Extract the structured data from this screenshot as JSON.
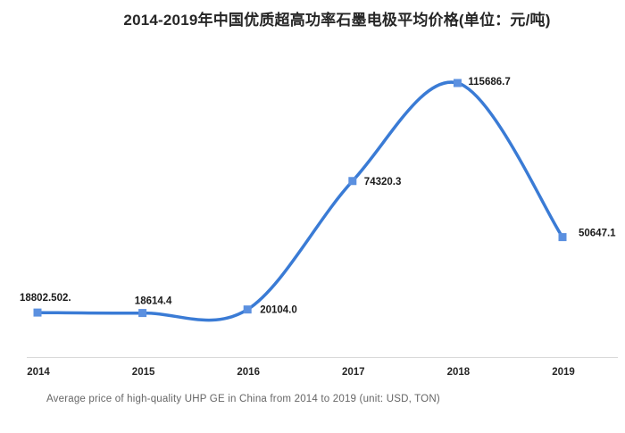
{
  "title": "2014-2019年中国优质超高功率石墨电极平均价格(单位：元/吨)",
  "caption": "Average price of high-quality UHP GE in China from 2014 to 2019 (unit: USD, TON)",
  "chart_data": {
    "type": "line",
    "title": "2014-2019年中国优质超高功率石墨电极平均价格(单位：元/吨)",
    "categories": [
      "2014",
      "2015",
      "2016",
      "2017",
      "2018",
      "2019"
    ],
    "values": [
      18802.502,
      18614.4,
      20104.0,
      74320.3,
      115686.7,
      50647.1
    ],
    "point_labels": [
      "18802.502.",
      "18614.4",
      "20104.0",
      "74320.3",
      "115686.7",
      "50647.1"
    ],
    "xlabel": "",
    "ylabel": "",
    "ylim": [
      0,
      130000
    ],
    "grid": false,
    "legend": "none",
    "smooth": true,
    "line_color": "#3a7bd5",
    "marker_color": "#5b90e0",
    "axis_line_color": "#d9d9d9",
    "label_color": "#1a1a1a",
    "tick_color": "#262626"
  }
}
